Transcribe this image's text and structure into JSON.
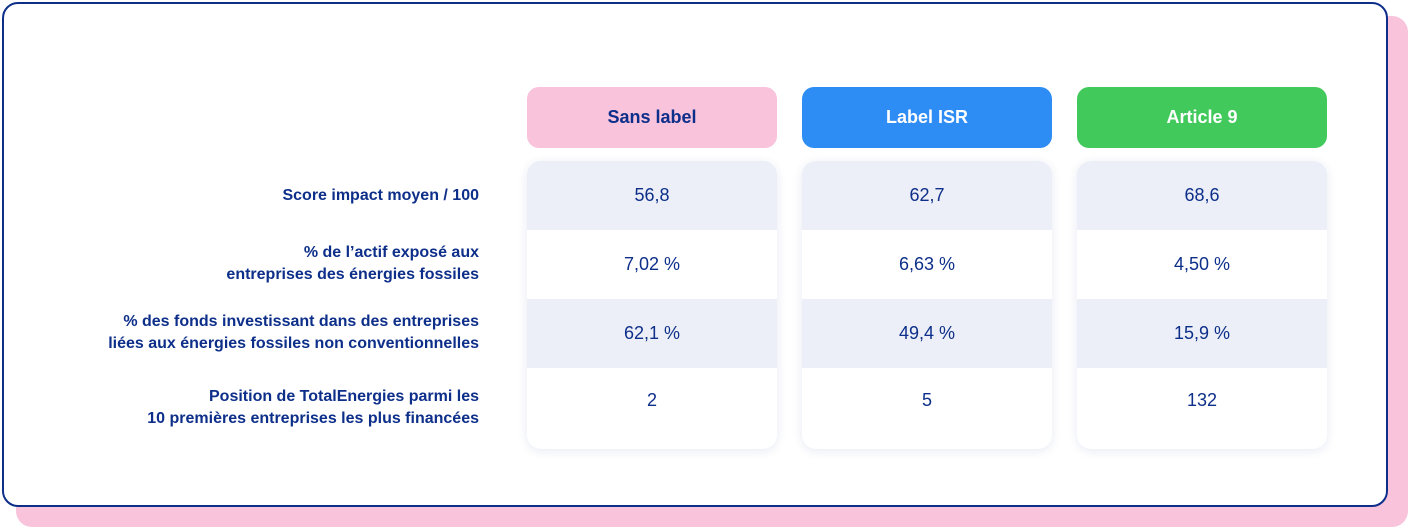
{
  "colors": {
    "border": "#0d2f8a",
    "shadow_pink": "#f9c3dc",
    "sans_label": "#f9c3dc",
    "label_isr": "#2e8cf5",
    "article_9": "#42c95c",
    "row_shade": "#eceff7"
  },
  "columns": [
    {
      "label": "Sans label",
      "bg": "#f9c3dc",
      "fg": "#0d2f8a",
      "values": [
        "56,8",
        "7,02 %",
        "62,1 %",
        "2"
      ]
    },
    {
      "label": "Label ISR",
      "bg": "#2e8cf5",
      "fg": "#ffffff",
      "values": [
        "62,7",
        "6,63 %",
        "49,4 %",
        "5"
      ]
    },
    {
      "label": "Article 9",
      "bg": "#42c95c",
      "fg": "#ffffff",
      "values": [
        "68,6",
        "4,50 %",
        "15,9 %",
        "132"
      ]
    }
  ],
  "rows": [
    {
      "line1": "Score impact moyen / 100",
      "line2": ""
    },
    {
      "line1": "% de l’actif exposé aux",
      "line2": "entreprises des énergies fossiles"
    },
    {
      "line1": "% des fonds investissant dans des entreprises",
      "line2": "liées aux énergies fossiles non conventionnelles"
    },
    {
      "line1": "Position de TotalEnergies parmi les",
      "line2": "10 premières entreprises les plus financées"
    }
  ]
}
